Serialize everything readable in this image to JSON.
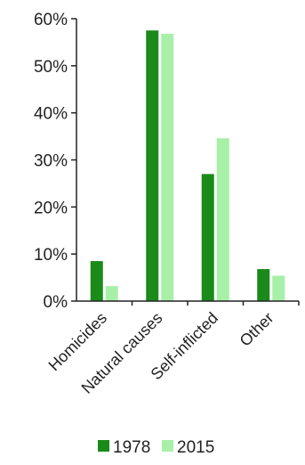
{
  "chart_data": {
    "type": "bar",
    "categories": [
      "Homicides",
      "Natural causes",
      "Self-inflicted",
      "Other"
    ],
    "series": [
      {
        "name": "1978",
        "color": "#1a8a1a",
        "values": [
          8.5,
          57.5,
          27.0,
          6.8
        ]
      },
      {
        "name": "2015",
        "color": "#a8f0a8",
        "values": [
          3.2,
          56.8,
          34.6,
          5.4
        ]
      }
    ],
    "yticks": [
      "0%",
      "10%",
      "20%",
      "30%",
      "40%",
      "50%",
      "60%"
    ],
    "ylim": [
      0,
      60
    ],
    "grid": false,
    "legend_position": "bottom"
  }
}
